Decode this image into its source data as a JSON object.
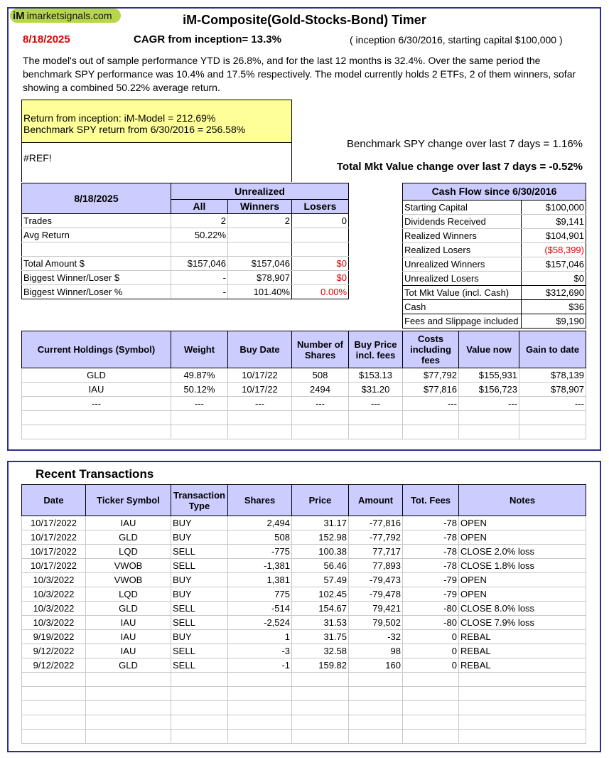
{
  "logo": {
    "text": "imarketsignals.com",
    "mark": "iM"
  },
  "title": "iM-Composite(Gold-Stocks-Bond) Timer",
  "date": "8/18/2025",
  "cagr": "CAGR from inception= 13.3%",
  "inception": "( inception 6/30/2016,  starting capital $100,000 )",
  "summary": "The model's out of sample performance YTD is 26.8%, and for the last 12 months is 32.4%. Over the same period the benchmark SPY performance was  10.4% and 17.5% respectively. The model currently holds 2 ETFs, 2 of them winners, sofar showing a combined 50.22% average return.",
  "returns": {
    "model": "Return from inception: iM-Model =  212.69%",
    "benchmark": "Benchmark SPY return from 6/30/2016 =  256.58%"
  },
  "ref_error": "#REF!",
  "spy_change": "Benchmark SPY change over last 7 days =   1.16%",
  "mkt_change": "Total Mkt Value change over last 7 days =  -0.52%",
  "unrealized": {
    "date": "8/18/2025",
    "group": "Unrealized",
    "cols": [
      "All",
      "Winners",
      "Losers"
    ],
    "rows": [
      [
        "Trades",
        "2",
        "2",
        "0"
      ],
      [
        "Avg Return",
        "50.22%",
        "",
        ""
      ],
      [
        "",
        "",
        "",
        ""
      ],
      [
        "Total Amount $",
        "$157,046",
        "$157,046",
        "$0"
      ],
      [
        "Biggest Winner/Loser $",
        "-",
        "$78,907",
        "$0"
      ],
      [
        "Biggest Winner/Loser %",
        "-",
        "101.40%",
        "0.00%"
      ]
    ]
  },
  "cashflow": {
    "title": "Cash Flow since 6/30/2016",
    "rows": [
      [
        "Starting Capital",
        "$100,000"
      ],
      [
        "Dividends Received",
        "$9,141"
      ],
      [
        "Realized Winners",
        "$104,901"
      ],
      [
        "Realized Losers",
        "($58,399)"
      ],
      [
        "Unrealized Winners",
        "$157,046"
      ],
      [
        "Unrealized Losers",
        "$0"
      ],
      [
        "Tot Mkt Value (incl. Cash)",
        "$312,690"
      ],
      [
        "Cash",
        "$36"
      ],
      [
        "Fees and Slippage included",
        "$9,190"
      ]
    ]
  },
  "holdings": {
    "cols": [
      "Current Holdings  (Symbol)",
      "Weight",
      "Buy Date",
      "Number of Shares",
      "Buy Price incl. fees",
      "Costs including fees",
      "Value now",
      "Gain to date"
    ],
    "rows": [
      [
        "GLD",
        "49.87%",
        "10/17/22",
        "508",
        "$153.13",
        "$77,792",
        "$155,931",
        "$78,139"
      ],
      [
        "IAU",
        "50.12%",
        "10/17/22",
        "2494",
        "$31.20",
        "$77,816",
        "$156,723",
        "$78,907"
      ],
      [
        "---",
        "---",
        "---",
        "---",
        "---",
        "---",
        "---",
        "---"
      ]
    ]
  },
  "transactions": {
    "title": "Recent Transactions",
    "cols": [
      "Date",
      "Ticker Symbol",
      "Transaction Type",
      "Shares",
      "Price",
      "Amount",
      "Tot. Fees",
      "Notes"
    ],
    "rows": [
      [
        "10/17/2022",
        "IAU",
        "BUY",
        "2,494",
        "31.17",
        "-77,816",
        "-78",
        "OPEN"
      ],
      [
        "10/17/2022",
        "GLD",
        "BUY",
        "508",
        "152.98",
        "-77,792",
        "-78",
        "OPEN"
      ],
      [
        "10/17/2022",
        "LQD",
        "SELL",
        "-775",
        "100.38",
        "77,717",
        "-78",
        "CLOSE 2.0% loss"
      ],
      [
        "10/17/2022",
        "VWOB",
        "SELL",
        "-1,381",
        "56.46",
        "77,893",
        "-78",
        "CLOSE 1.8% loss"
      ],
      [
        "10/3/2022",
        "VWOB",
        "BUY",
        "1,381",
        "57.49",
        "-79,473",
        "-79",
        "OPEN"
      ],
      [
        "10/3/2022",
        "LQD",
        "BUY",
        "775",
        "102.45",
        "-79,478",
        "-79",
        "OPEN"
      ],
      [
        "10/3/2022",
        "GLD",
        "SELL",
        "-514",
        "154.67",
        "79,421",
        "-80",
        "CLOSE 8.0% loss"
      ],
      [
        "10/3/2022",
        "IAU",
        "SELL",
        "-2,524",
        "31.53",
        "79,502",
        "-80",
        "CLOSE 7.9% loss"
      ],
      [
        "9/19/2022",
        "IAU",
        "BUY",
        "1",
        "31.75",
        "-32",
        "0",
        "REBAL"
      ],
      [
        "9/12/2022",
        "IAU",
        "SELL",
        "-3",
        "32.58",
        "98",
        "0",
        "REBAL"
      ],
      [
        "9/12/2022",
        "GLD",
        "SELL",
        "-1",
        "159.82",
        "160",
        "0",
        "REBAL"
      ]
    ]
  },
  "colors": {
    "header": "#ccccff",
    "highlight": "#ffff99",
    "negative": "#e00000",
    "frame": "#2e2e8c",
    "logo": "#b8d64a"
  }
}
